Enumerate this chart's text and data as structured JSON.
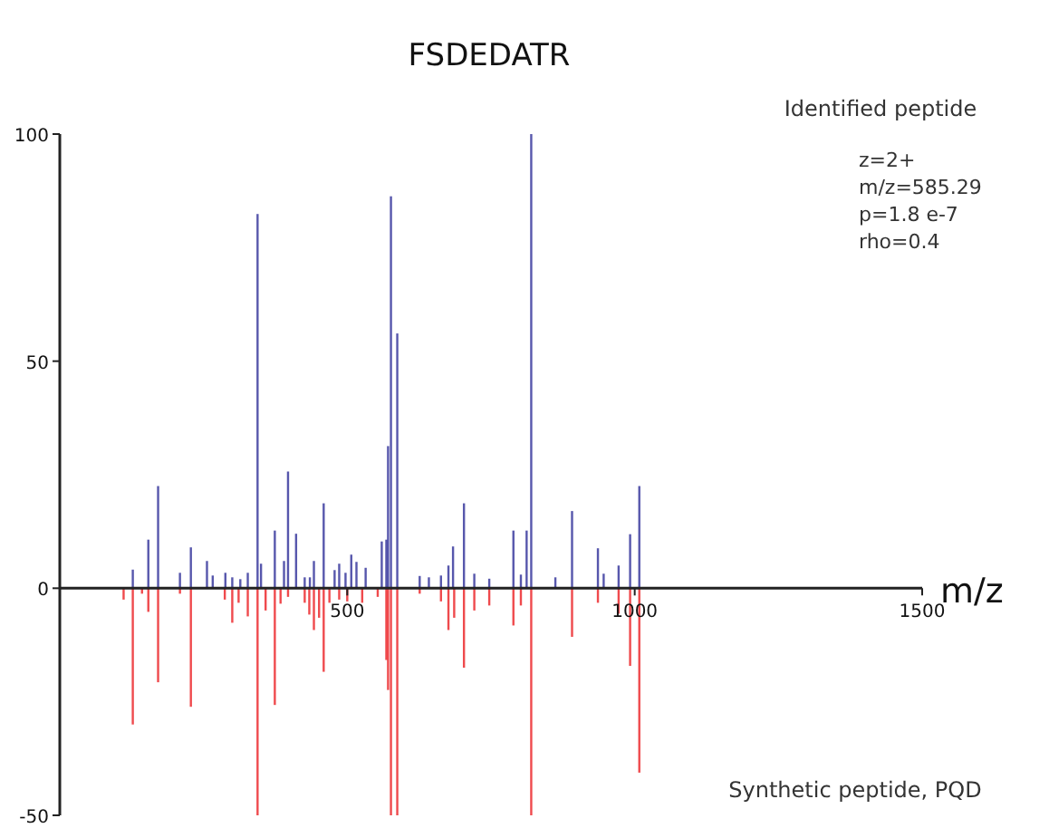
{
  "chart_data": {
    "type": "bar",
    "title": "FSDEDATR",
    "xlabel": "m/z",
    "xlim": [
      0,
      1500
    ],
    "xticks": [
      {
        "value": 0,
        "label": null
      },
      500,
      1000,
      1500
    ],
    "ylim": [
      -50,
      100
    ],
    "yticks": [
      -50,
      0,
      50,
      100
    ],
    "grid": false,
    "annotations": [
      "Identified peptide",
      "z=2+",
      "m/z=585.29",
      "p=1.8 e-7",
      "rho=0.4",
      "Synthetic peptide, PQD"
    ],
    "series": [
      {
        "color": "#3a3a9e",
        "x": [
          127,
          154,
          171,
          209,
          228,
          256,
          266,
          288,
          300,
          314,
          327,
          344,
          350,
          374,
          390,
          397,
          411,
          426,
          435,
          442,
          459,
          478,
          486,
          497,
          507,
          516,
          532,
          560,
          568,
          571,
          576,
          587,
          626,
          642,
          663,
          676,
          684,
          703,
          721,
          747,
          789,
          802,
          812,
          820,
          862,
          891,
          936,
          946,
          972,
          992,
          1008
        ],
        "values": [
          4.1,
          10.7,
          22.5,
          3.4,
          9,
          6,
          2.8,
          3.4,
          2.4,
          2,
          3.4,
          82.4,
          5.4,
          12.7,
          6,
          25.7,
          12,
          2.4,
          2.4,
          6,
          18.7,
          4,
          5.4,
          3.4,
          7.4,
          5.8,
          4.5,
          10.3,
          10.7,
          31.3,
          86.3,
          56.1,
          2.7,
          2.4,
          2.8,
          5,
          9.2,
          18.7,
          3.2,
          2.1,
          12.7,
          3,
          12.7,
          100,
          2.4,
          17,
          8.8,
          3.2,
          5,
          11.9,
          22.5
        ]
      },
      {
        "color": "#ec2a2e",
        "x": [
          111,
          127,
          143,
          154,
          171,
          209,
          228,
          287,
          300,
          311,
          327,
          344,
          358,
          374,
          384,
          397,
          426,
          434,
          442,
          451,
          459,
          469,
          486,
          500,
          526,
          553,
          568,
          571,
          576,
          587,
          626,
          663,
          676,
          686,
          703,
          721,
          747,
          789,
          802,
          820,
          891,
          936,
          972,
          992,
          1008
        ],
        "values": [
          -2.5,
          -30,
          -1.2,
          -5.2,
          -20.7,
          -1.2,
          -26.1,
          -2.5,
          -7.6,
          -3.2,
          -6.2,
          -50,
          -4.9,
          -25.7,
          -3.4,
          -1.9,
          -3.2,
          -5.8,
          -9.2,
          -6.5,
          -18.4,
          -3.2,
          -2.5,
          -2.9,
          -3.2,
          -1.9,
          -15.8,
          -22.4,
          -50,
          -50,
          -1.2,
          -2.9,
          -9.2,
          -6.5,
          -17.5,
          -4.9,
          -3.8,
          -8.2,
          -3.8,
          -50,
          -10.7,
          -3.2,
          -5.6,
          -17.1,
          -40.6
        ]
      }
    ]
  }
}
